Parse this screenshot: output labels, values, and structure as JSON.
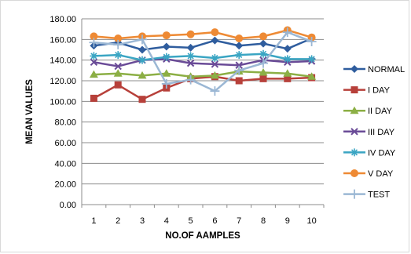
{
  "chart_data": {
    "type": "line",
    "xlabel": "NO.OF AAMPLES",
    "ylabel": "MEAN VALUES",
    "ylim": [
      0,
      180
    ],
    "ytick_step": 20,
    "ytick_labels": [
      "0.00",
      "20.00",
      "40.00",
      "60.00",
      "80.00",
      "100.00",
      "120.00",
      "140.00",
      "160.00",
      "180.00"
    ],
    "categories": [
      "1",
      "2",
      "3",
      "4",
      "5",
      "6",
      "7",
      "8",
      "9",
      "10"
    ],
    "grid": "horizontal",
    "legend_position": "right",
    "series": [
      {
        "name": "NORMAL",
        "color": "#2f5d9e",
        "marker": "diamond",
        "values": [
          154,
          157,
          150,
          153,
          152,
          159,
          154,
          156,
          151,
          161
        ]
      },
      {
        "name": "I DAY",
        "color": "#b7403a",
        "marker": "square",
        "values": [
          103,
          116,
          102,
          113,
          122,
          124,
          120,
          122,
          122,
          123
        ]
      },
      {
        "name": "II DAY",
        "color": "#8caf45",
        "marker": "triangle",
        "values": [
          126,
          127,
          125,
          127,
          124,
          125,
          129,
          128,
          127,
          124
        ]
      },
      {
        "name": "III DAY",
        "color": "#6a4b97",
        "marker": "x",
        "values": [
          138,
          134,
          140,
          141,
          137,
          136,
          135,
          140,
          138,
          139
        ]
      },
      {
        "name": "IV DAY",
        "color": "#3aa5c3",
        "marker": "asterisk",
        "values": [
          144,
          145,
          140,
          143,
          144,
          142,
          145,
          146,
          141,
          141
        ]
      },
      {
        "name": "V DAY",
        "color": "#ee8a34",
        "marker": "circle",
        "values": [
          163,
          161,
          163,
          164,
          165,
          167,
          161,
          163,
          169,
          162
        ]
      },
      {
        "name": "TEST",
        "color": "#9bb7d4",
        "marker": "plus",
        "values": [
          157,
          155,
          160,
          117,
          121,
          110,
          130,
          137,
          167,
          158
        ]
      }
    ]
  }
}
